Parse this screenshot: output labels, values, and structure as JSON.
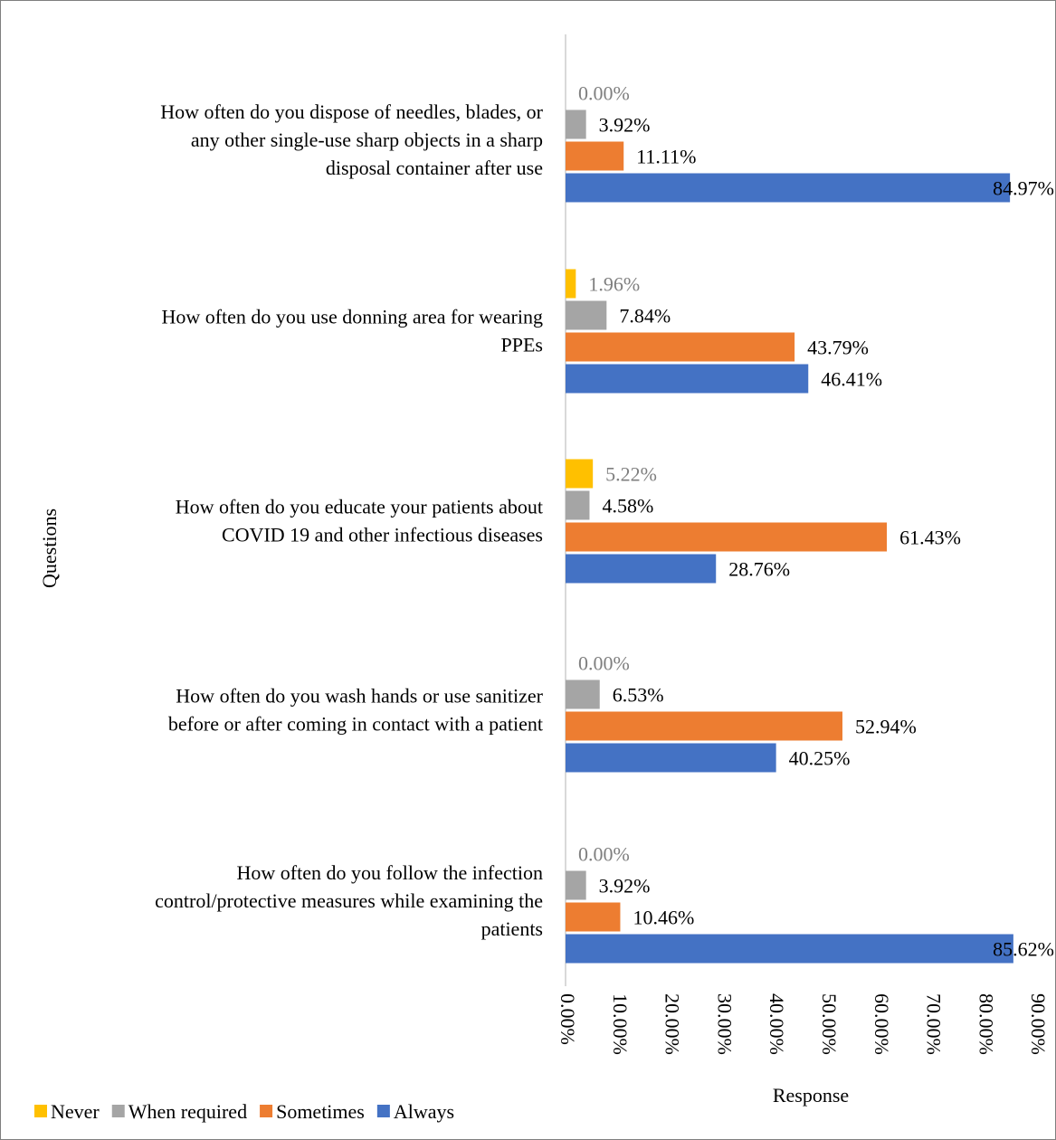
{
  "chart_data": {
    "type": "bar",
    "orientation": "horizontal",
    "title": "",
    "xlabel": "Response",
    "ylabel": "Questions",
    "xlim": [
      0,
      90
    ],
    "x_ticks": [
      "0.00%",
      "10.00%",
      "20.00%",
      "30.00%",
      "40.00%",
      "50.00%",
      "60.00%",
      "70.00%",
      "80.00%",
      "90.00%"
    ],
    "legend_position": "bottom-left",
    "grid": false,
    "categories": [
      [
        "How often do you dispose of needles, blades, or",
        "any other single-use sharp objects in a sharp",
        "disposal container after use"
      ],
      [
        "How often do you use donning area for wearing",
        "PPEs"
      ],
      [
        "How often do you educate your patients about",
        "COVID 19 and other infectious diseases"
      ],
      [
        "How often do you wash hands or use sanitizer",
        "before or after coming in contact with a patient"
      ],
      [
        "How often do you follow the infection",
        "control/protective measures while examining the",
        "patients"
      ]
    ],
    "series": [
      {
        "name": "Never",
        "color": "#FFC000",
        "values": [
          0.0,
          1.96,
          5.22,
          0.0,
          0.0
        ],
        "labels": [
          "0.00%",
          "1.96%",
          "5.22%",
          "0.00%",
          "0.00%"
        ]
      },
      {
        "name": "When required",
        "color": "#A5A5A5",
        "values": [
          3.92,
          7.84,
          4.58,
          6.53,
          3.92
        ],
        "labels": [
          "3.92%",
          "7.84%",
          "4.58%",
          "6.53%",
          "3.92%"
        ]
      },
      {
        "name": "Sometimes",
        "color": "#ED7D31",
        "values": [
          11.11,
          43.79,
          61.43,
          52.94,
          10.46
        ],
        "labels": [
          "11.11%",
          "43.79%",
          "61.43%",
          "52.94%",
          "10.46%"
        ]
      },
      {
        "name": "Always",
        "color": "#4472C4",
        "values": [
          84.97,
          46.41,
          28.76,
          40.25,
          85.62
        ],
        "labels": [
          "84.97%",
          "46.41%",
          "28.76%",
          "40.25%",
          "85.62%"
        ]
      }
    ]
  }
}
